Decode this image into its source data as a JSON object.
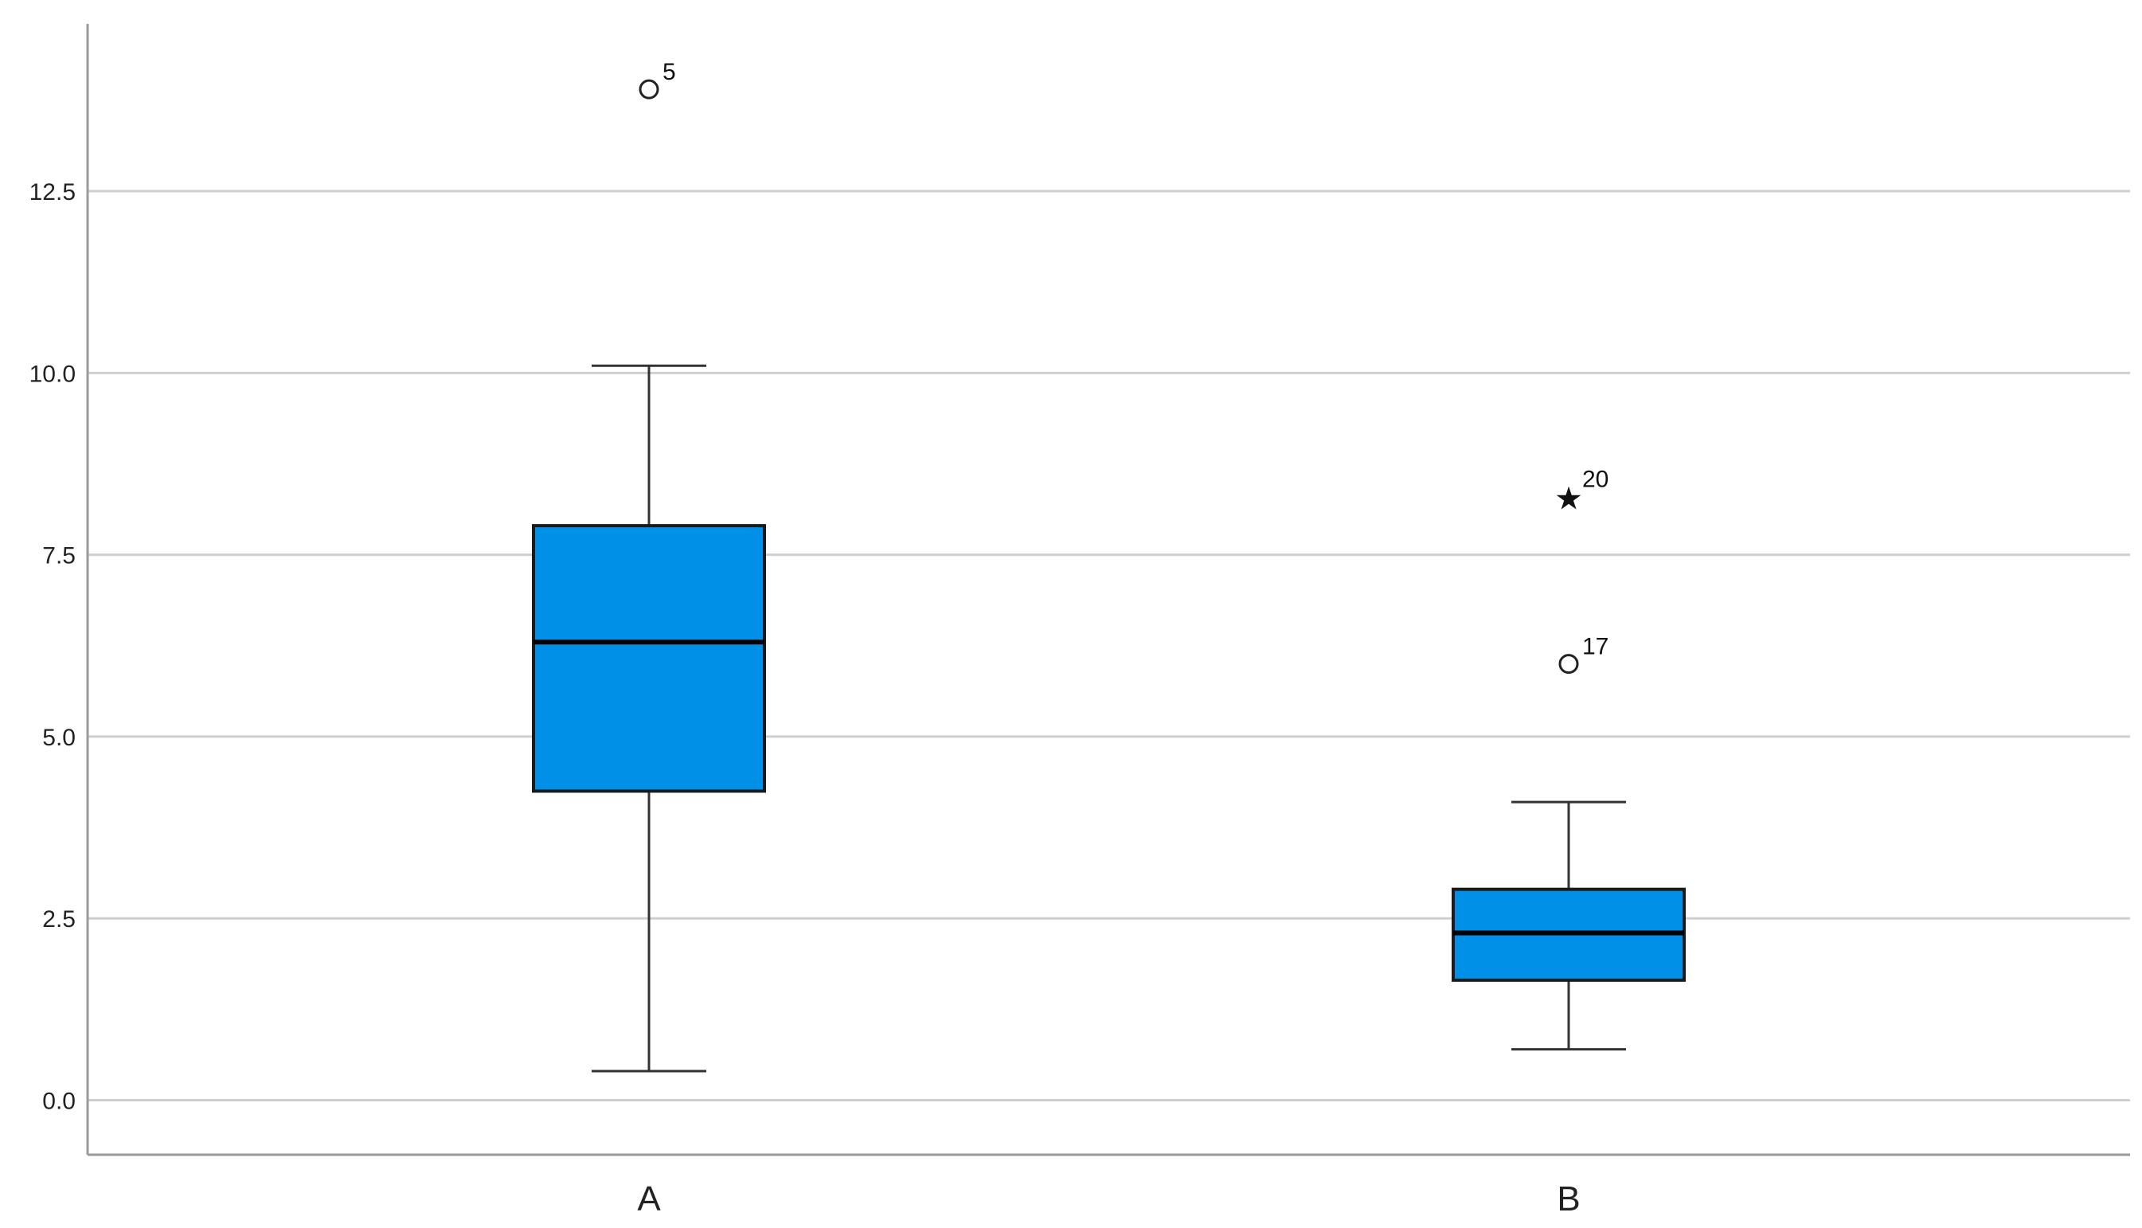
{
  "chart_data": {
    "type": "boxplot",
    "title": "",
    "xlabel": "",
    "ylabel": "",
    "ylim": [
      -0.75,
      14.8
    ],
    "y_ticks": [
      0.0,
      2.5,
      5.0,
      7.5,
      10.0,
      12.5
    ],
    "y_tick_labels": [
      "0.0",
      "2.5",
      "5.0",
      "7.5",
      "10.0",
      "12.5"
    ],
    "grid": "horizontal",
    "legend": "none",
    "box_color": "#0090e8",
    "categories": [
      "A",
      "B"
    ],
    "boxes": [
      {
        "category": "A",
        "whisker_low": 0.4,
        "q1": 4.25,
        "median": 6.3,
        "q3": 7.9,
        "whisker_high": 10.1,
        "outliers": [
          {
            "label": "5",
            "value": 13.9,
            "marker": "circle"
          }
        ]
      },
      {
        "category": "B",
        "whisker_low": 0.7,
        "q1": 1.65,
        "median": 2.3,
        "q3": 2.9,
        "whisker_high": 4.1,
        "outliers": [
          {
            "label": "20",
            "value": 8.3,
            "marker": "star"
          },
          {
            "label": "17",
            "value": 6.0,
            "marker": "circle"
          }
        ]
      }
    ]
  }
}
